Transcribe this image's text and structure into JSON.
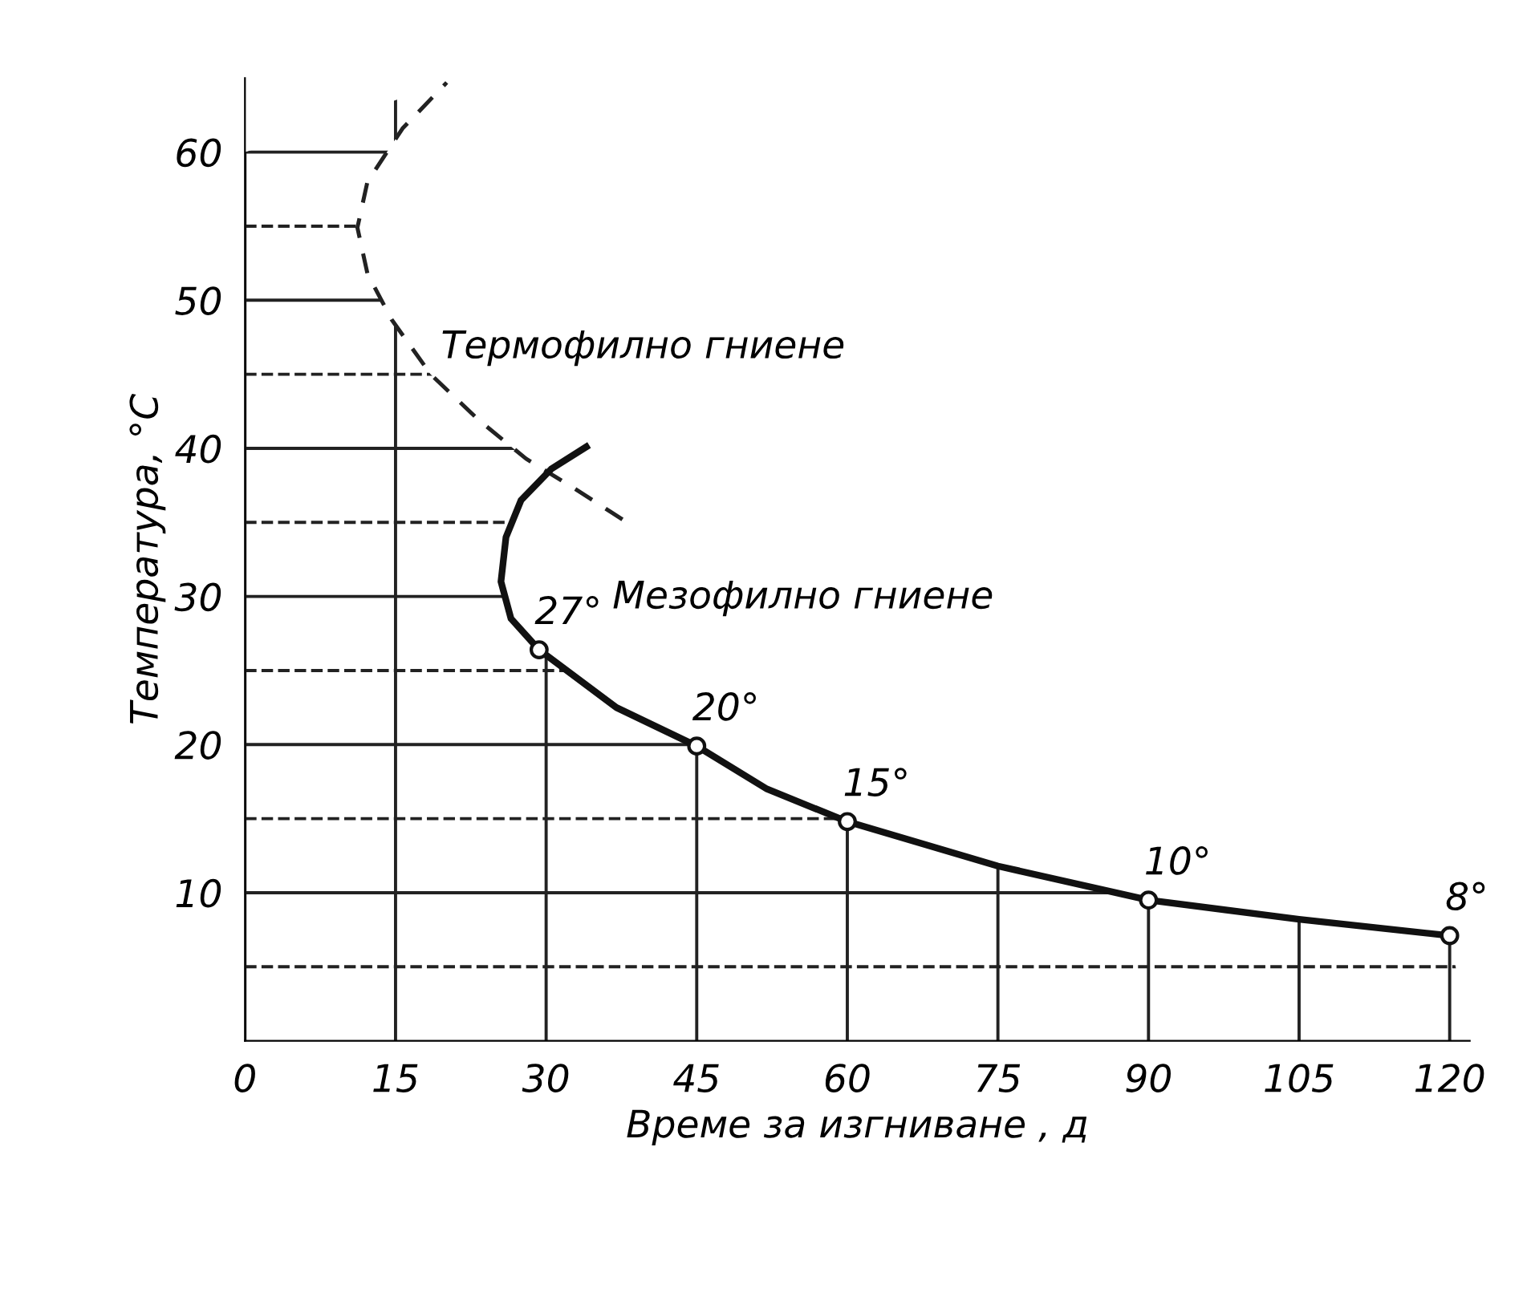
{
  "chart_data": {
    "type": "line",
    "xlabel": "Време за изгниване , д",
    "ylabel": "Температура, °С",
    "xlim": [
      0,
      122
    ],
    "ylim": [
      0,
      65
    ],
    "xticks": [
      0,
      15,
      30,
      45,
      60,
      75,
      90,
      105,
      120
    ],
    "yticks": [
      {
        "value": 5,
        "label": null
      },
      10,
      {
        "value": 15,
        "label": null
      },
      20,
      {
        "value": 25,
        "label": null
      },
      30,
      {
        "value": 35,
        "label": null
      },
      40,
      {
        "value": 45,
        "label": null
      },
      50,
      {
        "value": 55,
        "label": null
      },
      60
    ],
    "grid": true,
    "series": [
      {
        "line_style": "dashed",
        "color": "#222222",
        "x": [
          37.6,
          32.8,
          28,
          23.3,
          18.5,
          14.6,
          12.2,
          11.2,
          12.2,
          15.7,
          20.1
        ],
        "values": [
          35.2,
          37.3,
          39.3,
          41.9,
          45,
          48.7,
          51.8,
          54.9,
          58,
          61.6,
          64.7
        ]
      },
      {
        "line_style": "solid",
        "color": "#111111",
        "x": [
          120,
          105,
          90,
          75,
          60,
          52,
          45,
          37,
          29.3,
          26.5,
          25.5,
          26,
          27.5,
          30.5,
          34
        ],
        "values": [
          7.1,
          8.2,
          9.5,
          11.8,
          14.8,
          17,
          19.9,
          22.5,
          26.4,
          28.5,
          31,
          34,
          36.5,
          38.6,
          40.1
        ]
      },
      {
        "type": "scatter",
        "marker": "circle",
        "color": "#111111",
        "x": [
          29.3,
          45,
          60,
          90,
          120
        ],
        "values": [
          26.4,
          19.9,
          14.8,
          9.5,
          7.1
        ]
      }
    ],
    "annotations": [
      "Термофилно гниене",
      "Мезофилно гниене",
      {
        "text": "27°",
        "x": 29.3,
        "y": 26.4
      },
      {
        "text": "20°",
        "x": 45,
        "y": 19.9
      },
      {
        "text": "15°",
        "x": 60,
        "y": 14.8
      },
      {
        "text": "10°",
        "x": 90,
        "y": 9.5
      },
      {
        "text": "8°",
        "x": 120,
        "y": 7.1
      }
    ]
  }
}
